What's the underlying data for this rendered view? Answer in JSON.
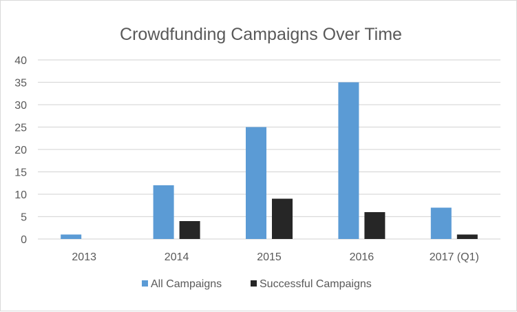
{
  "chart_data": {
    "type": "bar",
    "title": "Crowdfunding Campaigns Over Time",
    "categories": [
      "2013",
      "2014",
      "2015",
      "2016",
      "2017 (Q1)"
    ],
    "series": [
      {
        "name": "All Campaigns",
        "values": [
          1,
          12,
          25,
          35,
          7
        ],
        "color": "#5b9bd5"
      },
      {
        "name": "Successful Campaigns",
        "values": [
          0,
          4,
          9,
          6,
          1
        ],
        "color": "#262626"
      }
    ],
    "ylim": [
      0,
      40
    ],
    "yticks": [
      "0",
      "5",
      "10",
      "15",
      "20",
      "25",
      "30",
      "35",
      "40"
    ],
    "grid": true,
    "legend": "bottom"
  }
}
